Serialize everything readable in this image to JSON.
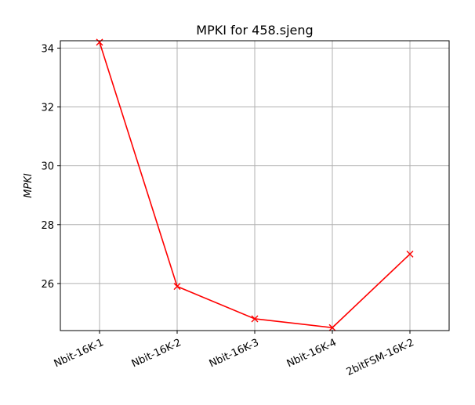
{
  "chart_data": {
    "type": "line",
    "title": "MPKI for 458.sjeng",
    "xlabel": "",
    "ylabel": "MPKI",
    "categories": [
      "Nbit-16K-1",
      "Nbit-16K-2",
      "Nbit-16K-3",
      "Nbit-16K-4",
      "2bitFSM-16K-2"
    ],
    "series": [
      {
        "values": [
          34.2,
          25.9,
          24.8,
          24.5,
          27.0
        ],
        "color": "#ff0000",
        "marker": "x"
      }
    ],
    "ylim": [
      24.4,
      34.25
    ],
    "yticks": [
      26,
      28,
      30,
      32,
      34
    ],
    "grid": true,
    "xtick_rotation": "rotated"
  }
}
